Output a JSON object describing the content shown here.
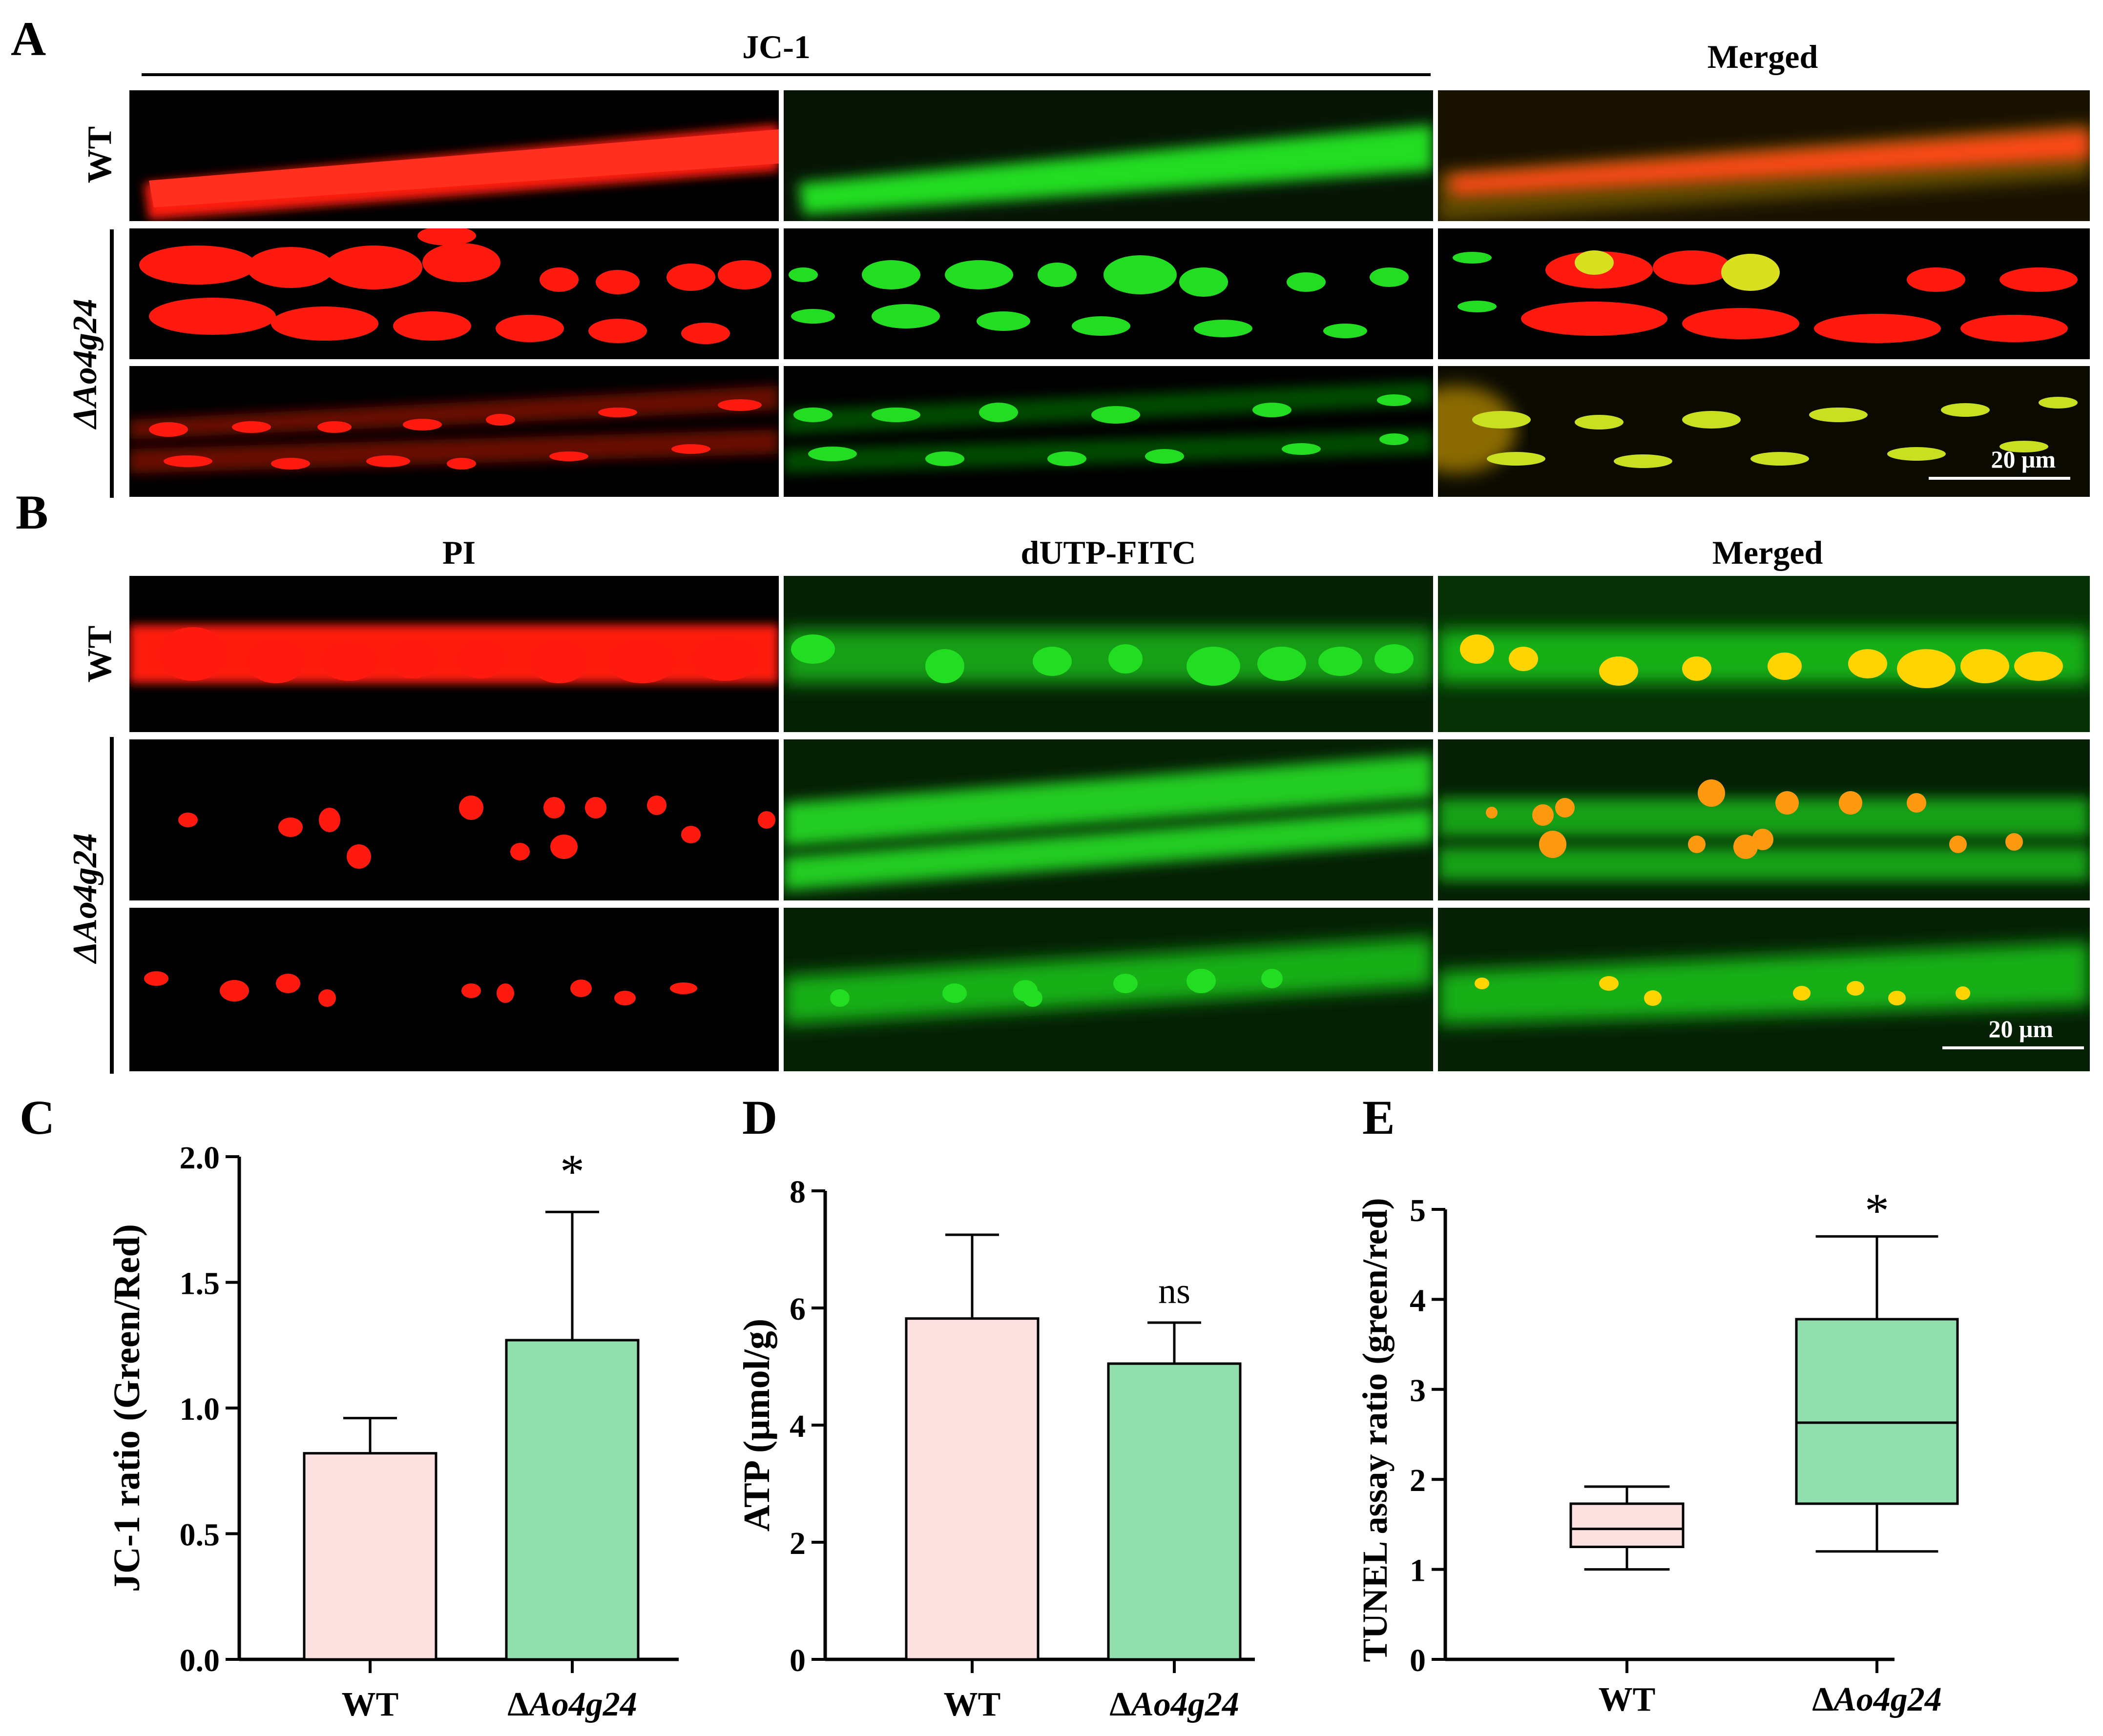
{
  "panel_letters": [
    "A",
    "B",
    "C",
    "D",
    "E"
  ],
  "panel_A": {
    "column_titles": [
      "JC-1",
      "Merged"
    ],
    "row_labels": [
      "WT",
      "ΔAo4g24"
    ],
    "scale_bar": "20 μm"
  },
  "panel_B": {
    "column_titles": [
      "PI",
      "dUTP-FITC",
      "Merged"
    ],
    "row_labels": [
      "WT",
      "ΔAo4g24"
    ],
    "scale_bar": "20 μm"
  },
  "colors": {
    "red_channel": "#ff1a10",
    "green_channel": "#22dd22",
    "merged_yellow": "#ffd400",
    "wt_fill": "#fde1e1",
    "mutant_fill": "#91dfac"
  },
  "chart_data": [
    {
      "type": "bar",
      "panel": "C",
      "categories": [
        "WT",
        "ΔAo4g24"
      ],
      "values": [
        0.82,
        1.27
      ],
      "error_upper": [
        0.96,
        1.78
      ],
      "ylabel": "JC-1 ratio (Green/Red)",
      "ylim": [
        0,
        2.0
      ],
      "yticks": [
        "0.0",
        "0.5",
        "1.0",
        "1.5",
        "2.0"
      ],
      "annotations": [
        "",
        "*"
      ],
      "grid": false
    },
    {
      "type": "bar",
      "panel": "D",
      "categories": [
        "WT",
        "ΔAo4g24"
      ],
      "values": [
        5.82,
        5.05
      ],
      "error_upper": [
        7.25,
        5.75
      ],
      "ylabel": "ATP (μmol/g)",
      "ylim": [
        0,
        8
      ],
      "yticks": [
        "0",
        "2",
        "4",
        "6",
        "8"
      ],
      "annotations": [
        "",
        "ns"
      ],
      "grid": false
    },
    {
      "type": "box",
      "panel": "E",
      "categories": [
        "WT",
        "ΔAo4g24"
      ],
      "boxes": [
        {
          "min": 1.0,
          "q1": 1.25,
          "median": 1.45,
          "q3": 1.73,
          "max": 1.92
        },
        {
          "min": 1.2,
          "q1": 1.73,
          "median": 2.63,
          "q3": 3.78,
          "max": 4.7
        }
      ],
      "ylabel": "TUNEL assay ratio (green/red)",
      "ylim": [
        0,
        5
      ],
      "yticks": [
        "0",
        "1",
        "2",
        "3",
        "4",
        "5"
      ],
      "annotations": [
        "",
        "*"
      ],
      "grid": false
    }
  ]
}
